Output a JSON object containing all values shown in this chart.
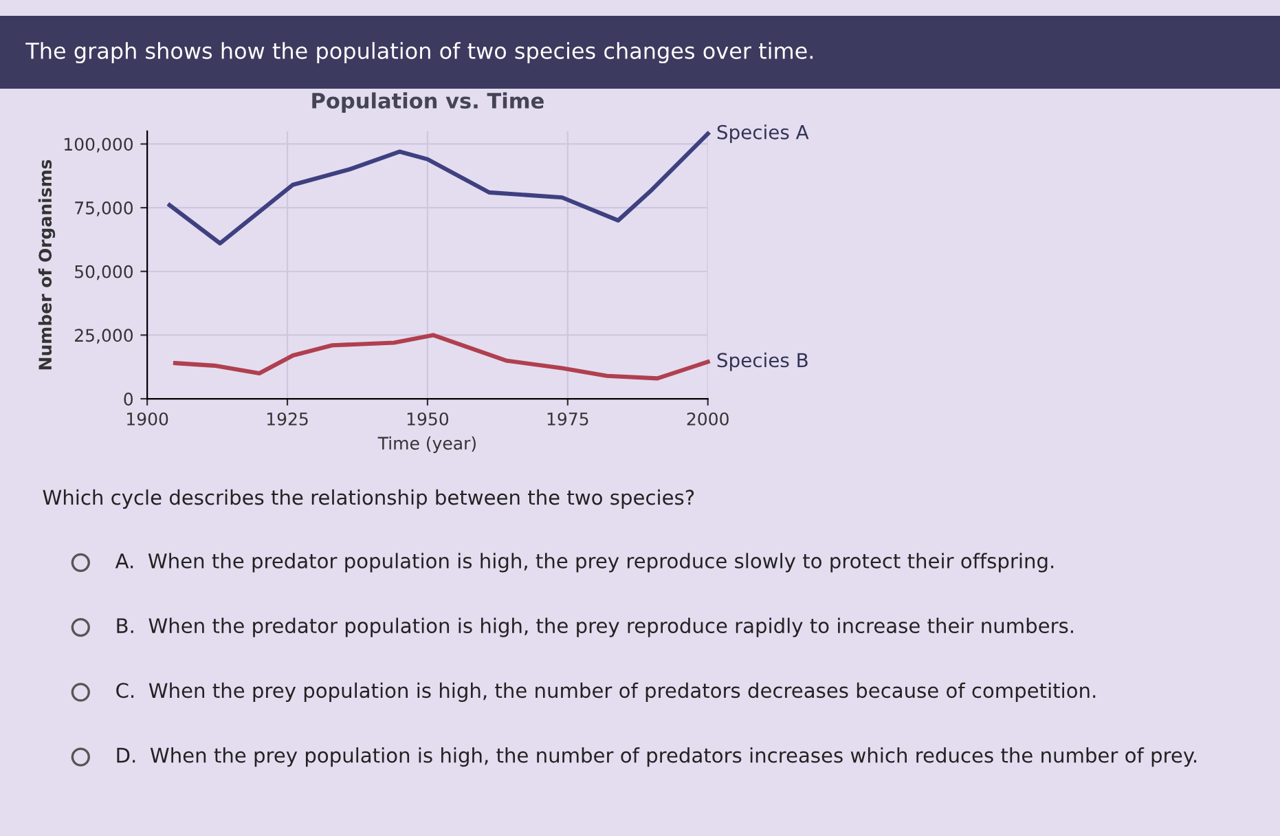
{
  "chart_data": {
    "type": "line",
    "title": "Population vs. Time",
    "xlabel": "Time (year)",
    "ylabel": "Number of Organisms",
    "xlim": [
      1900,
      2000
    ],
    "xticks": [
      1900,
      1925,
      1950,
      1975,
      2000
    ],
    "ylim": [
      0,
      105000
    ],
    "yticks": [
      {
        "value": 0,
        "label": "0"
      },
      {
        "value": 25000,
        "label": "25,000"
      },
      {
        "value": 50000,
        "label": "50,000"
      },
      {
        "value": 75000,
        "label": "75,000"
      },
      {
        "value": 100000,
        "label": "100,000"
      }
    ],
    "grid": true,
    "legend": false,
    "marker": "none",
    "line_style": "solid",
    "series": [
      {
        "name": "Species A",
        "color": "#3f4080",
        "x": [
          1904,
          1913,
          1926,
          1936,
          1945,
          1950,
          1961,
          1974,
          1984,
          1990,
          2000
        ],
        "values": [
          76000,
          61000,
          84000,
          90000,
          97000,
          94000,
          81000,
          79000,
          70000,
          82000,
          104000
        ]
      },
      {
        "name": "Species B",
        "color": "#b0404f",
        "x": [
          1905,
          1912,
          1920,
          1926,
          1933,
          1944,
          1951,
          1964,
          1974,
          1982,
          1991,
          2000
        ],
        "values": [
          14000,
          13000,
          10000,
          17000,
          21000,
          22000,
          25000,
          15000,
          12000,
          9000,
          8000,
          14500
        ]
      }
    ],
    "annotations": [
      "The graph shows how the population of two species changes over time.",
      "Which cycle describes the relationship between the two species?",
      "A.  When the predator population is high, the prey reproduce slowly to protect their offspring.",
      "B.  When the predator population is high, the prey reproduce rapidly to increase their numbers.",
      "C.  When the prey population is high, the number of predators decreases because of competition.",
      "D.  When the prey population is high, the number of predators increases which reduces the number of prey."
    ]
  }
}
